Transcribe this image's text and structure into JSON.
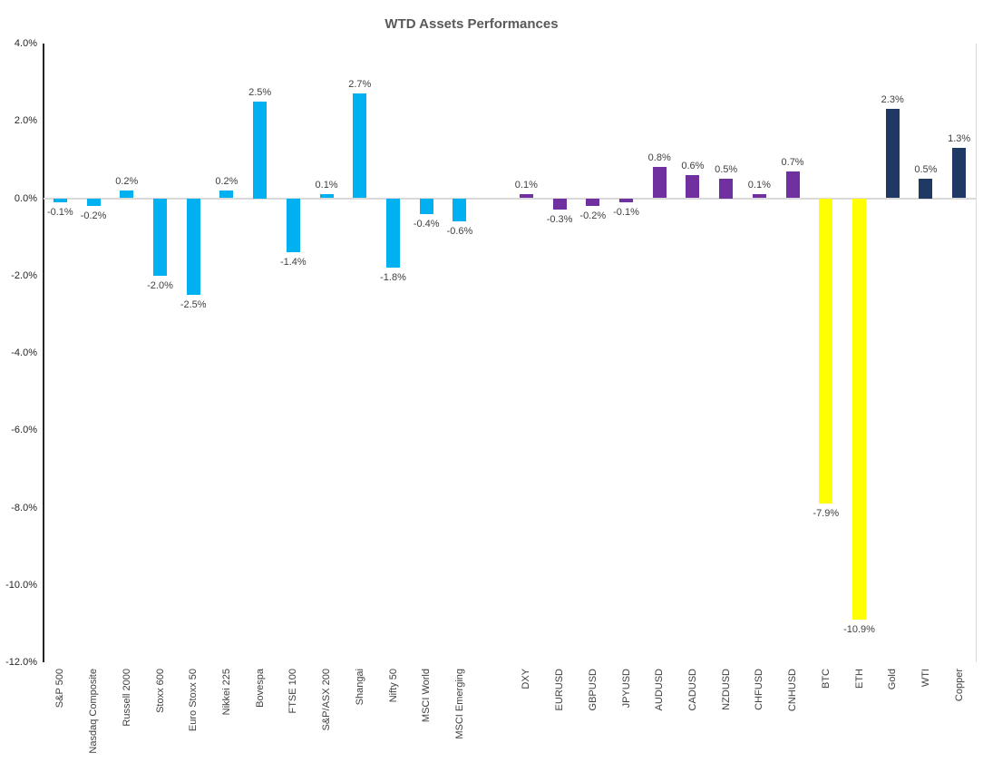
{
  "title": "WTD Assets Performances",
  "chart_data": {
    "type": "bar",
    "title": "WTD Assets Performances",
    "xlabel": "",
    "ylabel": "",
    "ylim": [
      -12,
      4
    ],
    "ytick_step": 2,
    "grid": false,
    "legend": false,
    "value_label_format": "0.0%",
    "yticks": [
      {
        "label": "4.0%",
        "value": 4
      },
      {
        "label": "2.0%",
        "value": 2
      },
      {
        "label": "0.0%",
        "value": 0
      },
      {
        "label": "-2.0%",
        "value": -2
      },
      {
        "label": "-4.0%",
        "value": -4
      },
      {
        "label": "-6.0%",
        "value": -6
      },
      {
        "label": "-8.0%",
        "value": -8
      },
      {
        "label": "-10.0%",
        "value": -10
      },
      {
        "label": "-12.0%",
        "value": -12
      }
    ],
    "groups": {
      "equities": "#00B0F0",
      "fx": "#7030A0",
      "crypto": "#FFFF00",
      "commodities": "#1F3864",
      "spacer": "transparent"
    },
    "bars": [
      {
        "category": "S&P 500",
        "value": -0.1,
        "label": "-0.1%",
        "group": "equities"
      },
      {
        "category": "Nasdaq Composite",
        "value": -0.2,
        "label": "-0.2%",
        "group": "equities"
      },
      {
        "category": "Russell 2000",
        "value": 0.2,
        "label": "0.2%",
        "group": "equities"
      },
      {
        "category": "Stoxx 600",
        "value": -2.0,
        "label": "-2.0%",
        "group": "equities"
      },
      {
        "category": "Euro Stoxx 50",
        "value": -2.5,
        "label": "-2.5%",
        "group": "equities"
      },
      {
        "category": "Nikkei 225",
        "value": 0.2,
        "label": "0.2%",
        "group": "equities"
      },
      {
        "category": "Bovespa",
        "value": 2.5,
        "label": "2.5%",
        "group": "equities"
      },
      {
        "category": "FTSE 100",
        "value": -1.4,
        "label": "-1.4%",
        "group": "equities"
      },
      {
        "category": "S&P/ASX 200",
        "value": 0.1,
        "label": "0.1%",
        "group": "equities"
      },
      {
        "category": "Shangai",
        "value": 2.7,
        "label": "2.7%",
        "group": "equities"
      },
      {
        "category": "Nifty 50",
        "value": -1.8,
        "label": "-1.8%",
        "group": "equities"
      },
      {
        "category": "MSCI World",
        "value": -0.4,
        "label": "-0.4%",
        "group": "equities"
      },
      {
        "category": "MSCI Emerging",
        "value": -0.6,
        "label": "-0.6%",
        "group": "equities"
      },
      {
        "category": "",
        "value": null,
        "label": "",
        "group": "spacer"
      },
      {
        "category": "DXY",
        "value": 0.1,
        "label": "0.1%",
        "group": "fx"
      },
      {
        "category": "EURUSD",
        "value": -0.3,
        "label": "-0.3%",
        "group": "fx"
      },
      {
        "category": "GBPUSD",
        "value": -0.2,
        "label": "-0.2%",
        "group": "fx"
      },
      {
        "category": "JPYUSD",
        "value": -0.1,
        "label": "-0.1%",
        "group": "fx"
      },
      {
        "category": "AUDUSD",
        "value": 0.8,
        "label": "0.8%",
        "group": "fx"
      },
      {
        "category": "CADUSD",
        "value": 0.6,
        "label": "0.6%",
        "group": "fx"
      },
      {
        "category": "NZDUSD",
        "value": 0.5,
        "label": "0.5%",
        "group": "fx"
      },
      {
        "category": "CHFUSD",
        "value": 0.1,
        "label": "0.1%",
        "group": "fx"
      },
      {
        "category": "CNHUSD",
        "value": 0.7,
        "label": "0.7%",
        "group": "fx"
      },
      {
        "category": "BTC",
        "value": -7.9,
        "label": "-7.9%",
        "group": "crypto"
      },
      {
        "category": "ETH",
        "value": -10.9,
        "label": "-10.9%",
        "group": "crypto"
      },
      {
        "category": "Gold",
        "value": 2.3,
        "label": "2.3%",
        "group": "commodities"
      },
      {
        "category": "WTI",
        "value": 0.5,
        "label": "0.5%",
        "group": "commodities"
      },
      {
        "category": "Copper",
        "value": 1.3,
        "label": "1.3%",
        "group": "commodities"
      }
    ]
  }
}
